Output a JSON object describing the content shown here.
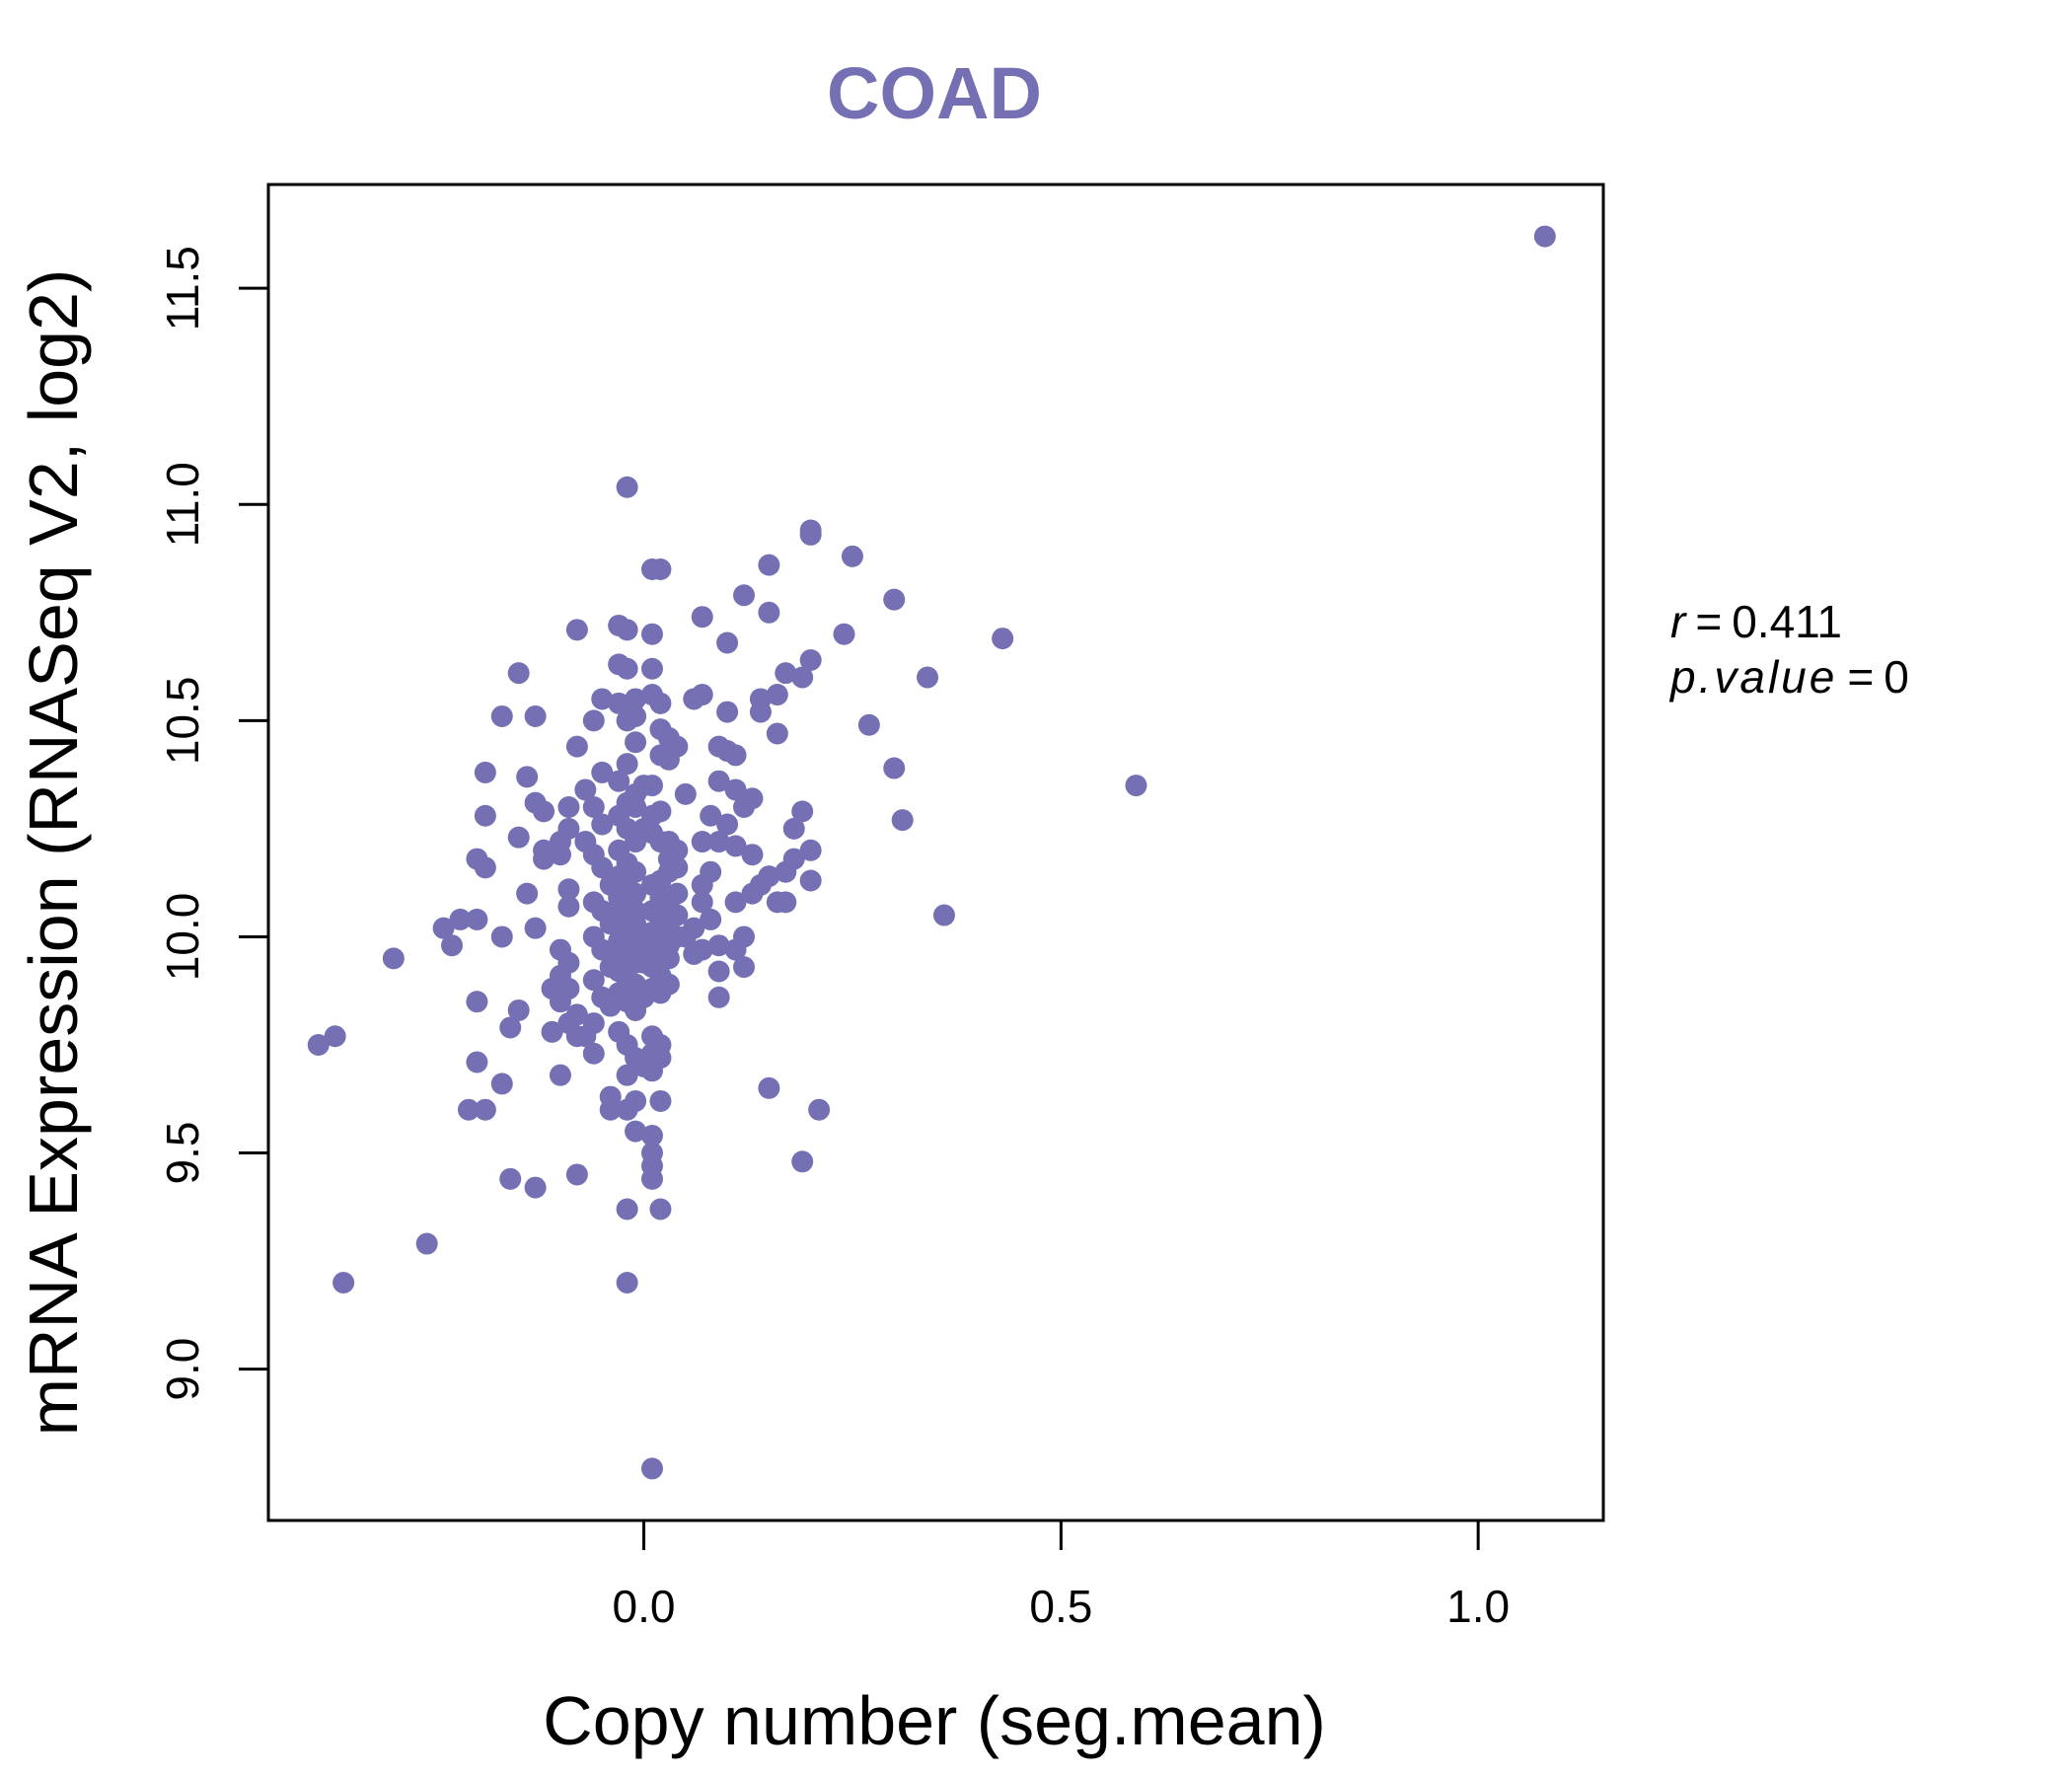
{
  "chart_data": {
    "type": "scatter",
    "title": "COAD",
    "xlabel": "Copy number (seg.mean)",
    "ylabel": "mRNA Expression (RNASeq V2, log2)",
    "xlim": [
      -0.45,
      1.15
    ],
    "ylim": [
      8.65,
      11.74
    ],
    "x_ticks": [
      0.0,
      0.5,
      1.0
    ],
    "x_tick_labels": [
      "0.0",
      "0.5",
      "1.0"
    ],
    "y_ticks": [
      9.0,
      9.5,
      10.0,
      10.5,
      11.0,
      11.5
    ],
    "y_tick_labels": [
      "9.0",
      "9.5",
      "10.0",
      "10.5",
      "11.0",
      "11.5"
    ],
    "grid": false,
    "point_color": "#7570B3",
    "annotations": [
      {
        "name": "r",
        "label": "r",
        "operator": "=",
        "value": "0.411"
      },
      {
        "name": "p",
        "label": "p.value",
        "operator": "=",
        "value": "0"
      }
    ],
    "points": [
      [
        1.08,
        11.62
      ],
      [
        0.59,
        10.35
      ],
      [
        0.43,
        10.69
      ],
      [
        0.36,
        10.05
      ],
      [
        0.34,
        10.6
      ],
      [
        0.31,
        10.27
      ],
      [
        0.3,
        10.78
      ],
      [
        0.3,
        10.39
      ],
      [
        0.27,
        10.49
      ],
      [
        0.25,
        10.88
      ],
      [
        0.24,
        10.7
      ],
      [
        0.2,
        10.94
      ],
      [
        0.2,
        10.93
      ],
      [
        0.2,
        10.64
      ],
      [
        0.19,
        10.6
      ],
      [
        0.17,
        10.61
      ],
      [
        0.2,
        10.2
      ],
      [
        0.19,
        10.29
      ],
      [
        0.18,
        10.25
      ],
      [
        0.18,
        10.18
      ],
      [
        0.17,
        10.15
      ],
      [
        0.2,
        10.13
      ],
      [
        0.17,
        10.08
      ],
      [
        0.16,
        10.08
      ],
      [
        0.15,
        10.86
      ],
      [
        0.15,
        10.75
      ],
      [
        0.12,
        10.79
      ],
      [
        0.16,
        10.56
      ],
      [
        0.14,
        10.52
      ],
      [
        0.14,
        10.55
      ],
      [
        0.16,
        10.47
      ],
      [
        0.12,
        10.3
      ],
      [
        0.13,
        10.32
      ],
      [
        0.13,
        10.19
      ],
      [
        0.15,
        10.14
      ],
      [
        0.14,
        10.12
      ],
      [
        0.13,
        10.1
      ],
      [
        0.11,
        10.08
      ],
      [
        0.12,
        10.0
      ],
      [
        0.11,
        9.97
      ],
      [
        0.12,
        9.93
      ],
      [
        0.09,
        9.92
      ],
      [
        0.09,
        9.86
      ],
      [
        0.15,
        9.65
      ],
      [
        0.21,
        9.6
      ],
      [
        0.19,
        9.48
      ],
      [
        0.07,
        10.74
      ],
      [
        0.1,
        10.68
      ],
      [
        0.07,
        10.56
      ],
      [
        0.06,
        10.55
      ],
      [
        0.1,
        10.52
      ],
      [
        0.09,
        10.44
      ],
      [
        0.11,
        10.42
      ],
      [
        0.1,
        10.43
      ],
      [
        0.05,
        10.33
      ],
      [
        0.09,
        10.36
      ],
      [
        0.11,
        10.34
      ],
      [
        0.08,
        10.28
      ],
      [
        0.1,
        10.26
      ],
      [
        0.09,
        10.22
      ],
      [
        0.11,
        10.21
      ],
      [
        0.07,
        10.22
      ],
      [
        0.08,
        10.15
      ],
      [
        0.07,
        10.12
      ],
      [
        0.07,
        10.08
      ],
      [
        0.08,
        10.04
      ],
      [
        0.06,
        10.02
      ],
      [
        0.09,
        9.98
      ],
      [
        0.07,
        9.97
      ],
      [
        0.06,
        9.96
      ],
      [
        0.05,
        10.0
      ],
      [
        0.02,
        10.85
      ],
      [
        0.01,
        10.85
      ],
      [
        0.01,
        10.7
      ],
      [
        0.01,
        10.62
      ],
      [
        0.01,
        10.56
      ],
      [
        0.02,
        10.54
      ],
      [
        0.02,
        10.48
      ],
      [
        0.03,
        10.46
      ],
      [
        0.04,
        10.44
      ],
      [
        0.02,
        10.42
      ],
      [
        0.03,
        10.41
      ],
      [
        0.01,
        10.35
      ],
      [
        0.0,
        10.35
      ],
      [
        0.02,
        10.29
      ],
      [
        0.01,
        10.28
      ],
      [
        0.0,
        10.25
      ],
      [
        0.01,
        10.24
      ],
      [
        0.02,
        10.22
      ],
      [
        0.03,
        10.22
      ],
      [
        0.04,
        10.2
      ],
      [
        0.03,
        10.18
      ],
      [
        0.04,
        10.16
      ],
      [
        0.03,
        10.15
      ],
      [
        0.02,
        10.13
      ],
      [
        0.01,
        10.12
      ],
      [
        0.04,
        10.1
      ],
      [
        0.02,
        10.09
      ],
      [
        0.03,
        10.08
      ],
      [
        0.01,
        10.06
      ],
      [
        0.04,
        10.05
      ],
      [
        0.02,
        10.04
      ],
      [
        0.03,
        10.02
      ],
      [
        0.01,
        10.01
      ],
      [
        0.04,
        10.0
      ],
      [
        0.02,
        9.99
      ],
      [
        0.03,
        9.98
      ],
      [
        0.01,
        9.97
      ],
      [
        0.02,
        9.96
      ],
      [
        0.03,
        9.95
      ],
      [
        0.0,
        9.94
      ],
      [
        0.01,
        9.93
      ],
      [
        0.02,
        9.91
      ],
      [
        0.03,
        9.89
      ],
      [
        0.01,
        9.88
      ],
      [
        0.02,
        9.87
      ],
      [
        0.0,
        9.86
      ],
      [
        0.01,
        9.77
      ],
      [
        0.02,
        9.75
      ],
      [
        0.01,
        9.73
      ],
      [
        0.02,
        9.72
      ],
      [
        0.0,
        9.7
      ],
      [
        0.01,
        9.69
      ],
      [
        0.02,
        9.62
      ],
      [
        0.01,
        9.54
      ],
      [
        0.01,
        9.5
      ],
      [
        0.01,
        9.47
      ],
      [
        0.01,
        9.44
      ],
      [
        0.02,
        9.37
      ],
      [
        0.01,
        8.77
      ],
      [
        -0.02,
        11.04
      ],
      [
        -0.03,
        10.72
      ],
      [
        -0.02,
        10.71
      ],
      [
        -0.03,
        10.63
      ],
      [
        -0.02,
        10.62
      ],
      [
        -0.01,
        10.55
      ],
      [
        -0.03,
        10.54
      ],
      [
        -0.01,
        10.51
      ],
      [
        -0.02,
        10.5
      ],
      [
        -0.01,
        10.45
      ],
      [
        -0.02,
        10.4
      ],
      [
        -0.03,
        10.36
      ],
      [
        -0.01,
        10.33
      ],
      [
        -0.02,
        10.31
      ],
      [
        -0.01,
        10.3
      ],
      [
        -0.03,
        10.28
      ],
      [
        -0.02,
        10.25
      ],
      [
        -0.01,
        10.22
      ],
      [
        -0.03,
        10.2
      ],
      [
        -0.02,
        10.17
      ],
      [
        -0.01,
        10.15
      ],
      [
        -0.03,
        10.14
      ],
      [
        -0.02,
        10.12
      ],
      [
        -0.01,
        10.1
      ],
      [
        -0.03,
        10.09
      ],
      [
        -0.02,
        10.07
      ],
      [
        -0.01,
        10.06
      ],
      [
        -0.03,
        10.05
      ],
      [
        -0.02,
        10.04
      ],
      [
        -0.01,
        10.03
      ],
      [
        -0.03,
        10.02
      ],
      [
        -0.02,
        10.01
      ],
      [
        -0.01,
        10.0
      ],
      [
        -0.03,
        9.99
      ],
      [
        -0.02,
        9.98
      ],
      [
        -0.01,
        9.97
      ],
      [
        -0.03,
        9.96
      ],
      [
        -0.02,
        9.95
      ],
      [
        -0.01,
        9.94
      ],
      [
        -0.03,
        9.92
      ],
      [
        -0.02,
        9.9
      ],
      [
        -0.01,
        9.89
      ],
      [
        -0.03,
        9.87
      ],
      [
        -0.02,
        9.85
      ],
      [
        -0.01,
        9.83
      ],
      [
        -0.03,
        9.78
      ],
      [
        -0.02,
        9.75
      ],
      [
        -0.01,
        9.72
      ],
      [
        -0.02,
        9.68
      ],
      [
        -0.01,
        9.62
      ],
      [
        -0.02,
        9.6
      ],
      [
        -0.01,
        9.55
      ],
      [
        -0.02,
        9.37
      ],
      [
        -0.02,
        9.2
      ],
      [
        -0.05,
        10.55
      ],
      [
        -0.06,
        10.5
      ],
      [
        -0.05,
        10.38
      ],
      [
        -0.07,
        10.34
      ],
      [
        -0.06,
        10.3
      ],
      [
        -0.05,
        10.26
      ],
      [
        -0.07,
        10.22
      ],
      [
        -0.06,
        10.19
      ],
      [
        -0.05,
        10.16
      ],
      [
        -0.04,
        10.12
      ],
      [
        -0.06,
        10.08
      ],
      [
        -0.05,
        10.06
      ],
      [
        -0.04,
        10.03
      ],
      [
        -0.06,
        10.0
      ],
      [
        -0.05,
        9.97
      ],
      [
        -0.04,
        9.93
      ],
      [
        -0.06,
        9.9
      ],
      [
        -0.05,
        9.86
      ],
      [
        -0.04,
        9.84
      ],
      [
        -0.06,
        9.8
      ],
      [
        -0.07,
        9.77
      ],
      [
        -0.06,
        9.73
      ],
      [
        -0.04,
        9.63
      ],
      [
        -0.04,
        9.6
      ],
      [
        -0.08,
        10.71
      ],
      [
        -0.08,
        10.44
      ],
      [
        -0.09,
        10.3
      ],
      [
        -0.09,
        10.25
      ],
      [
        -0.1,
        10.22
      ],
      [
        -0.1,
        10.19
      ],
      [
        -0.09,
        10.11
      ],
      [
        -0.09,
        10.07
      ],
      [
        -0.1,
        9.97
      ],
      [
        -0.09,
        9.94
      ],
      [
        -0.1,
        9.91
      ],
      [
        -0.09,
        9.88
      ],
      [
        -0.1,
        9.85
      ],
      [
        -0.08,
        9.82
      ],
      [
        -0.09,
        9.8
      ],
      [
        -0.08,
        9.77
      ],
      [
        -0.1,
        9.68
      ],
      [
        -0.08,
        9.45
      ],
      [
        -0.15,
        10.61
      ],
      [
        -0.13,
        10.51
      ],
      [
        -0.17,
        10.51
      ],
      [
        -0.14,
        10.37
      ],
      [
        -0.13,
        10.31
      ],
      [
        -0.12,
        10.29
      ],
      [
        -0.12,
        10.2
      ],
      [
        -0.15,
        10.23
      ],
      [
        -0.14,
        10.1
      ],
      [
        -0.12,
        10.18
      ],
      [
        -0.11,
        9.88
      ],
      [
        -0.13,
        10.02
      ],
      [
        -0.15,
        9.83
      ],
      [
        -0.16,
        9.79
      ],
      [
        -0.11,
        9.78
      ],
      [
        -0.16,
        9.44
      ],
      [
        -0.13,
        9.42
      ],
      [
        -0.19,
        10.38
      ],
      [
        -0.19,
        10.28
      ],
      [
        -0.2,
        10.18
      ],
      [
        -0.19,
        10.16
      ],
      [
        -0.2,
        10.04
      ],
      [
        -0.17,
        10.0
      ],
      [
        -0.2,
        9.85
      ],
      [
        -0.2,
        9.71
      ],
      [
        -0.17,
        9.66
      ],
      [
        -0.19,
        9.6
      ],
      [
        -0.21,
        9.6
      ],
      [
        -0.22,
        10.04
      ],
      [
        -0.24,
        10.02
      ],
      [
        -0.23,
        9.98
      ],
      [
        -0.3,
        9.95
      ],
      [
        -0.26,
        9.29
      ],
      [
        -0.37,
        9.77
      ],
      [
        -0.39,
        9.75
      ],
      [
        -0.36,
        9.2
      ]
    ]
  }
}
